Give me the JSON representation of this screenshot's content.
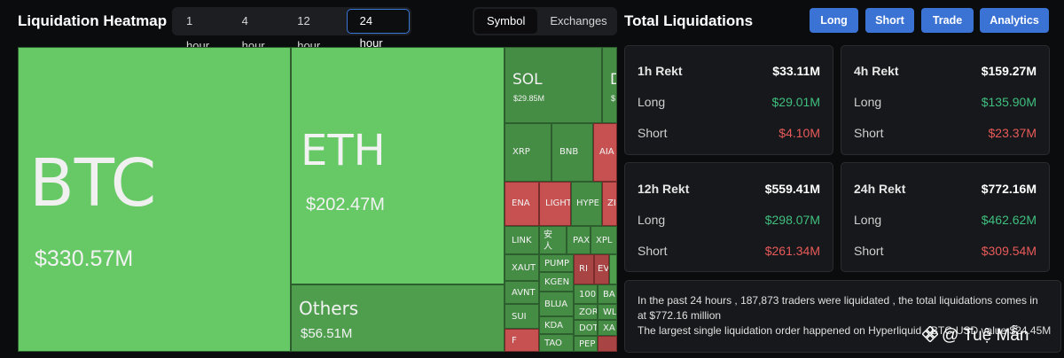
{
  "header": {
    "title": "Liquidation Heatmap",
    "time_options": [
      "1 hour",
      "4 hour",
      "12 hour",
      "24 hour"
    ],
    "type_options": [
      "Symbol",
      "Exchanges"
    ]
  },
  "treemap": {
    "btc": {
      "symbol": "BTC",
      "value": "$330.57M"
    },
    "eth": {
      "symbol": "ETH",
      "value": "$202.47M"
    },
    "others": {
      "symbol": "Others",
      "value": "$56.51M"
    },
    "sol": {
      "symbol": "SOL",
      "value": "$29.85M"
    },
    "d": {
      "symbol": "D",
      "value": "$"
    },
    "xrp": "XRP",
    "bnb": "BNB",
    "aia": "AIA",
    "ena": "ENA",
    "light": "LIGHT",
    "hype": "HYPE",
    "zi": "ZI",
    "link": "LINK",
    "an": "安人",
    "pax": "PAX",
    "xpl": "XPL",
    "xaut": "XAUT",
    "pump": "PUMP",
    "avnt": "AVNT",
    "kgen": "KGEN",
    "ri": "RI",
    "ev": "EV",
    "sui": "SUI",
    "blua": "BLUA",
    "n100": "100",
    "ba": "BA",
    "kda": "KDA",
    "zor": "ZOR",
    "wl": "WL",
    "f": "F",
    "dot": "DOT",
    "xa": "XA",
    "tao": "TAO",
    "pep": "PEP"
  },
  "totals": {
    "title": "Total Liquidations",
    "buttons": [
      "Long",
      "Short",
      "Trade",
      "Analytics"
    ],
    "cards": [
      {
        "label": "1h Rekt",
        "total": "$33.11M",
        "long_label": "Long",
        "long": "$29.01M",
        "short_label": "Short",
        "short": "$4.10M"
      },
      {
        "label": "4h Rekt",
        "total": "$159.27M",
        "long_label": "Long",
        "long": "$135.90M",
        "short_label": "Short",
        "short": "$23.37M"
      },
      {
        "label": "12h Rekt",
        "total": "$559.41M",
        "long_label": "Long",
        "long": "$298.07M",
        "short_label": "Short",
        "short": "$261.34M"
      },
      {
        "label": "24h Rekt",
        "total": "$772.16M",
        "long_label": "Long",
        "long": "$462.62M",
        "short_label": "Short",
        "short": "$309.54M"
      }
    ]
  },
  "info": {
    "line1": "In the past 24 hours , 187,873 traders were liquidated , the total liquidations comes in",
    "line2": "at $772.16 million",
    "line3": "The largest single liquidation order happened on Hyperliquid - BTC-USD value $24.45M"
  },
  "watermark": "@ Tuệ Mẫn",
  "colors": {
    "accent": "#3a73d4",
    "long_green": "#3fbf7f",
    "short_red": "#e85a5a"
  }
}
